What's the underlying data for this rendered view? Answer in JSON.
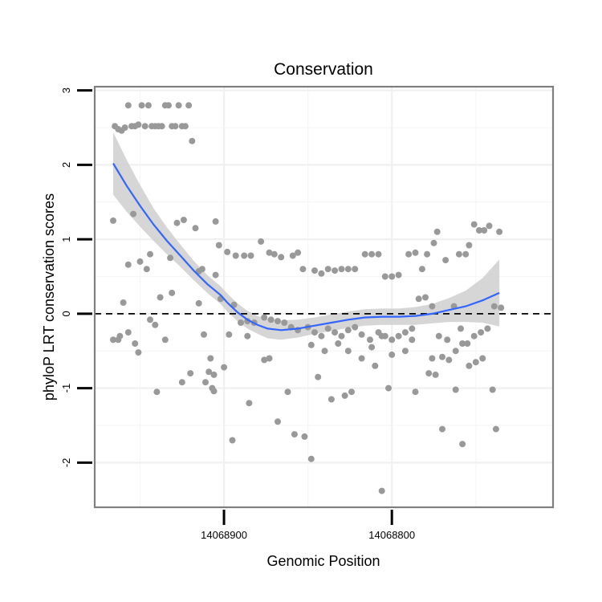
{
  "chart_data": {
    "type": "scatter",
    "title": "Conservation",
    "xlabel": "Genomic Position",
    "ylabel": "phyloP LRT conservation scores",
    "x_reversed": true,
    "xlim": [
      14068977,
      14068704
    ],
    "ylim": [
      -2.6,
      3.05
    ],
    "x_ticks": [
      {
        "value": 14068900,
        "label": "14068900"
      },
      {
        "value": 14068800,
        "label": "14068800"
      }
    ],
    "y_ticks": [
      {
        "value": 3,
        "label": "3"
      },
      {
        "value": 2,
        "label": "2"
      },
      {
        "value": 1,
        "label": "1"
      },
      {
        "value": 0,
        "label": "0"
      },
      {
        "value": -1,
        "label": "-1"
      },
      {
        "value": -2,
        "label": "-2"
      }
    ],
    "grid": true,
    "reference_line": {
      "y": 0,
      "style": "dashed",
      "color": "#000000"
    },
    "point_color": "#999999",
    "smooth_color": "#3366ff",
    "ribbon_color": "#cccccc",
    "points": [
      [
        14068965,
        2.52
      ],
      [
        14068963,
        2.48
      ],
      [
        14068961,
        2.46
      ],
      [
        14068959,
        2.5
      ],
      [
        14068957,
        2.8
      ],
      [
        14068955,
        2.52
      ],
      [
        14068953,
        2.52
      ],
      [
        14068951,
        2.54
      ],
      [
        14068949,
        2.8
      ],
      [
        14068947,
        2.52
      ],
      [
        14068945,
        2.8
      ],
      [
        14068943,
        2.52
      ],
      [
        14068941,
        2.52
      ],
      [
        14068939,
        2.52
      ],
      [
        14068937,
        2.52
      ],
      [
        14068935,
        2.8
      ],
      [
        14068933,
        2.8
      ],
      [
        14068931,
        2.52
      ],
      [
        14068929,
        2.52
      ],
      [
        14068927,
        2.8
      ],
      [
        14068925,
        2.52
      ],
      [
        14068923,
        2.52
      ],
      [
        14068921,
        2.8
      ],
      [
        14068919,
        2.32
      ],
      [
        14068966,
        1.25
      ],
      [
        14068954,
        1.34
      ],
      [
        14068944,
        0.8
      ],
      [
        14068928,
        1.22
      ],
      [
        14068924,
        1.26
      ],
      [
        14068917,
        1.15
      ],
      [
        14068905,
        1.24
      ],
      [
        14068903,
        0.92
      ],
      [
        14068898,
        0.83
      ],
      [
        14068893,
        0.78
      ],
      [
        14068888,
        0.78
      ],
      [
        14068884,
        0.78
      ],
      [
        14068878,
        0.97
      ],
      [
        14068873,
        0.82
      ],
      [
        14068866,
        0.76
      ],
      [
        14068859,
        0.78
      ],
      [
        14068856,
        0.82
      ],
      [
        14068853,
        0.6
      ],
      [
        14068846,
        0.58
      ],
      [
        14068842,
        0.54
      ],
      [
        14068838,
        0.6
      ],
      [
        14068834,
        0.58
      ],
      [
        14068830,
        0.6
      ],
      [
        14068826,
        0.6
      ],
      [
        14068822,
        0.6
      ],
      [
        14068816,
        0.8
      ],
      [
        14068812,
        0.8
      ],
      [
        14068808,
        0.8
      ],
      [
        14068804,
        0.5
      ],
      [
        14068800,
        0.5
      ],
      [
        14068796,
        0.52
      ],
      [
        14068790,
        0.8
      ],
      [
        14068786,
        0.82
      ],
      [
        14068782,
        0.6
      ],
      [
        14068779,
        0.8
      ],
      [
        14068775,
        0.95
      ],
      [
        14068773,
        1.1
      ],
      [
        14068768,
        0.72
      ],
      [
        14068760,
        0.8
      ],
      [
        14068756,
        0.8
      ],
      [
        14068754,
        0.92
      ],
      [
        14068751,
        1.2
      ],
      [
        14068748,
        1.12
      ],
      [
        14068745,
        1.12
      ],
      [
        14068742,
        1.18
      ],
      [
        14068736,
        1.1
      ],
      [
        14068957,
        0.66
      ],
      [
        14068950,
        0.7
      ],
      [
        14068932,
        0.75
      ],
      [
        14068915,
        0.57
      ],
      [
        14068905,
        0.52
      ],
      [
        14068913,
        0.6
      ],
      [
        14068870,
        0.8
      ],
      [
        14068966,
        -0.35
      ],
      [
        14068963,
        -0.35
      ],
      [
        14068960,
        0.15
      ],
      [
        14068957,
        -0.25
      ],
      [
        14068953,
        -0.4
      ],
      [
        14068951,
        -0.52
      ],
      [
        14068946,
        0.6
      ],
      [
        14068941,
        -0.15
      ],
      [
        14068938,
        0.22
      ],
      [
        14068935,
        -0.35
      ],
      [
        14068931,
        0.28
      ],
      [
        14068925,
        -0.92
      ],
      [
        14068920,
        -0.8
      ],
      [
        14068915,
        0.14
      ],
      [
        14068912,
        -0.28
      ],
      [
        14068909,
        -0.78
      ],
      [
        14068906,
        -0.82
      ],
      [
        14068902,
        0.2
      ],
      [
        14068897,
        -0.28
      ],
      [
        14068894,
        0.12
      ],
      [
        14068890,
        -0.12
      ],
      [
        14068886,
        -0.1
      ],
      [
        14068882,
        -0.12
      ],
      [
        14068876,
        -0.05
      ],
      [
        14068872,
        -0.08
      ],
      [
        14068868,
        -0.1
      ],
      [
        14068864,
        -0.12
      ],
      [
        14068860,
        -0.18
      ],
      [
        14068856,
        -0.22
      ],
      [
        14068850,
        -0.18
      ],
      [
        14068846,
        -0.25
      ],
      [
        14068842,
        -0.3
      ],
      [
        14068838,
        -0.2
      ],
      [
        14068834,
        -0.25
      ],
      [
        14068830,
        -0.3
      ],
      [
        14068826,
        -0.22
      ],
      [
        14068822,
        -0.18
      ],
      [
        14068818,
        -0.28
      ],
      [
        14068813,
        -0.35
      ],
      [
        14068808,
        -0.25
      ],
      [
        14068804,
        -0.3
      ],
      [
        14068800,
        -0.35
      ],
      [
        14068796,
        -0.3
      ],
      [
        14068792,
        -0.25
      ],
      [
        14068788,
        -0.2
      ],
      [
        14068784,
        0.2
      ],
      [
        14068780,
        0.22
      ],
      [
        14068776,
        0.1
      ],
      [
        14068772,
        -0.3
      ],
      [
        14068767,
        -0.35
      ],
      [
        14068763,
        0.1
      ],
      [
        14068759,
        -0.2
      ],
      [
        14068755,
        -0.4
      ],
      [
        14068751,
        -0.3
      ],
      [
        14068747,
        -0.25
      ],
      [
        14068743,
        -0.2
      ],
      [
        14068739,
        0.1
      ],
      [
        14068735,
        0.08
      ],
      [
        14068962,
        -0.3
      ],
      [
        14068944,
        -0.08
      ],
      [
        14068908,
        -0.6
      ],
      [
        14068886,
        -0.3
      ],
      [
        14068876,
        -0.62
      ],
      [
        14068848,
        -0.42
      ],
      [
        14068840,
        -0.5
      ],
      [
        14068832,
        -0.4
      ],
      [
        14068826,
        -0.5
      ],
      [
        14068818,
        -0.6
      ],
      [
        14068812,
        -0.45
      ],
      [
        14068806,
        -0.3
      ],
      [
        14068800,
        -0.55
      ],
      [
        14068792,
        -0.5
      ],
      [
        14068788,
        -0.35
      ],
      [
        14068776,
        -0.6
      ],
      [
        14068770,
        -0.58
      ],
      [
        14068766,
        -0.62
      ],
      [
        14068762,
        -0.5
      ],
      [
        14068758,
        -0.4
      ],
      [
        14068754,
        -0.7
      ],
      [
        14068750,
        -0.65
      ],
      [
        14068746,
        -0.6
      ],
      [
        14068940,
        -1.05
      ],
      [
        14068911,
        -0.92
      ],
      [
        14068907,
        -1.0
      ],
      [
        14068906,
        -1.04
      ],
      [
        14068900,
        -0.72
      ],
      [
        14068895,
        -1.7
      ],
      [
        14068885,
        -1.2
      ],
      [
        14068873,
        -0.6
      ],
      [
        14068868,
        -1.45
      ],
      [
        14068862,
        -1.05
      ],
      [
        14068858,
        -1.62
      ],
      [
        14068852,
        -1.65
      ],
      [
        14068848,
        -1.95
      ],
      [
        14068844,
        -0.85
      ],
      [
        14068836,
        -1.15
      ],
      [
        14068828,
        -1.1
      ],
      [
        14068824,
        -1.05
      ],
      [
        14068810,
        -0.7
      ],
      [
        14068806,
        -2.38
      ],
      [
        14068802,
        -1.0
      ],
      [
        14068786,
        -1.05
      ],
      [
        14068778,
        -0.8
      ],
      [
        14068774,
        -0.82
      ],
      [
        14068770,
        -1.55
      ],
      [
        14068762,
        -1.02
      ],
      [
        14068758,
        -1.75
      ],
      [
        14068740,
        -1.02
      ],
      [
        14068738,
        -1.55
      ]
    ],
    "smooth": [
      [
        14068966,
        2.02
      ],
      [
        14068958,
        1.72
      ],
      [
        14068950,
        1.45
      ],
      [
        14068942,
        1.2
      ],
      [
        14068934,
        0.98
      ],
      [
        14068926,
        0.78
      ],
      [
        14068918,
        0.58
      ],
      [
        14068910,
        0.4
      ],
      [
        14068902,
        0.25
      ],
      [
        14068898,
        0.15
      ],
      [
        14068892,
        0.02
      ],
      [
        14068886,
        -0.08
      ],
      [
        14068880,
        -0.15
      ],
      [
        14068874,
        -0.2
      ],
      [
        14068866,
        -0.22
      ],
      [
        14068856,
        -0.2
      ],
      [
        14068846,
        -0.16
      ],
      [
        14068836,
        -0.12
      ],
      [
        14068826,
        -0.08
      ],
      [
        14068816,
        -0.05
      ],
      [
        14068806,
        -0.04
      ],
      [
        14068796,
        -0.04
      ],
      [
        14068786,
        -0.03
      ],
      [
        14068776,
        0.0
      ],
      [
        14068766,
        0.05
      ],
      [
        14068756,
        0.1
      ],
      [
        14068746,
        0.18
      ],
      [
        14068736,
        0.28
      ]
    ],
    "ribbon_halfwidth": [
      0.42,
      0.35,
      0.28,
      0.22,
      0.18,
      0.15,
      0.13,
      0.12,
      0.12,
      0.12,
      0.12,
      0.12,
      0.12,
      0.13,
      0.13,
      0.12,
      0.11,
      0.11,
      0.11,
      0.11,
      0.11,
      0.11,
      0.12,
      0.13,
      0.16,
      0.21,
      0.3,
      0.45
    ]
  }
}
